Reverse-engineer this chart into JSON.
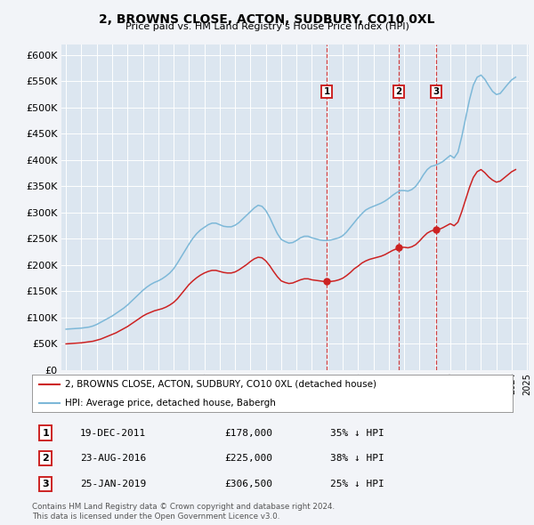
{
  "title": "2, BROWNS CLOSE, ACTON, SUDBURY, CO10 0XL",
  "subtitle": "Price paid vs. HM Land Registry's House Price Index (HPI)",
  "ylim": [
    0,
    620000
  ],
  "yticks": [
    0,
    50000,
    100000,
    150000,
    200000,
    250000,
    300000,
    350000,
    400000,
    450000,
    500000,
    550000,
    600000
  ],
  "hpi_color": "#7db8d8",
  "price_color": "#cc2222",
  "background_color": "#f2f4f8",
  "plot_bg_color": "#dce6f0",
  "grid_color": "#ffffff",
  "transactions": [
    {
      "num": 1,
      "date": "19-DEC-2011",
      "price": 178000,
      "hpi_diff": "35% ↓ HPI",
      "x": 2011.96
    },
    {
      "num": 2,
      "date": "23-AUG-2016",
      "price": 225000,
      "hpi_diff": "38% ↓ HPI",
      "x": 2016.64
    },
    {
      "num": 3,
      "date": "25-JAN-2019",
      "price": 306500,
      "hpi_diff": "25% ↓ HPI",
      "x": 2019.07
    }
  ],
  "hpi_data_x": [
    1995.0,
    1995.25,
    1995.5,
    1995.75,
    1996.0,
    1996.25,
    1996.5,
    1996.75,
    1997.0,
    1997.25,
    1997.5,
    1997.75,
    1998.0,
    1998.25,
    1998.5,
    1998.75,
    1999.0,
    1999.25,
    1999.5,
    1999.75,
    2000.0,
    2000.25,
    2000.5,
    2000.75,
    2001.0,
    2001.25,
    2001.5,
    2001.75,
    2002.0,
    2002.25,
    2002.5,
    2002.75,
    2003.0,
    2003.25,
    2003.5,
    2003.75,
    2004.0,
    2004.25,
    2004.5,
    2004.75,
    2005.0,
    2005.25,
    2005.5,
    2005.75,
    2006.0,
    2006.25,
    2006.5,
    2006.75,
    2007.0,
    2007.25,
    2007.5,
    2007.75,
    2008.0,
    2008.25,
    2008.5,
    2008.75,
    2009.0,
    2009.25,
    2009.5,
    2009.75,
    2010.0,
    2010.25,
    2010.5,
    2010.75,
    2011.0,
    2011.25,
    2011.5,
    2011.75,
    2012.0,
    2012.25,
    2012.5,
    2012.75,
    2013.0,
    2013.25,
    2013.5,
    2013.75,
    2014.0,
    2014.25,
    2014.5,
    2014.75,
    2015.0,
    2015.25,
    2015.5,
    2015.75,
    2016.0,
    2016.25,
    2016.5,
    2016.75,
    2017.0,
    2017.25,
    2017.5,
    2017.75,
    2018.0,
    2018.25,
    2018.5,
    2018.75,
    2019.0,
    2019.25,
    2019.5,
    2019.75,
    2020.0,
    2020.25,
    2020.5,
    2020.75,
    2021.0,
    2021.25,
    2021.5,
    2021.75,
    2022.0,
    2022.25,
    2022.5,
    2022.75,
    2023.0,
    2023.25,
    2023.5,
    2023.75,
    2024.0,
    2024.25
  ],
  "hpi_data_y": [
    78000,
    78500,
    79000,
    79500,
    80000,
    81000,
    82000,
    84000,
    87000,
    91000,
    95000,
    99000,
    103000,
    108000,
    113000,
    118000,
    124000,
    131000,
    138000,
    145000,
    152000,
    158000,
    163000,
    167000,
    170000,
    174000,
    179000,
    185000,
    193000,
    204000,
    216000,
    228000,
    240000,
    251000,
    260000,
    267000,
    272000,
    277000,
    280000,
    280000,
    277000,
    274000,
    273000,
    273000,
    276000,
    281000,
    288000,
    295000,
    302000,
    309000,
    314000,
    312000,
    304000,
    291000,
    275000,
    260000,
    249000,
    245000,
    242000,
    243000,
    247000,
    252000,
    255000,
    255000,
    252000,
    250000,
    248000,
    247000,
    247000,
    248000,
    250000,
    252000,
    256000,
    263000,
    272000,
    281000,
    290000,
    298000,
    305000,
    309000,
    312000,
    315000,
    318000,
    322000,
    327000,
    333000,
    338000,
    342000,
    342000,
    341000,
    344000,
    350000,
    360000,
    372000,
    382000,
    388000,
    390000,
    393000,
    397000,
    403000,
    409000,
    404000,
    415000,
    445000,
    480000,
    515000,
    543000,
    558000,
    562000,
    554000,
    542000,
    531000,
    525000,
    527000,
    536000,
    545000,
    553000,
    558000
  ],
  "price_data_x": [
    1995.0,
    1995.25,
    1995.5,
    1995.75,
    1996.0,
    1996.25,
    1996.5,
    1996.75,
    1997.0,
    1997.25,
    1997.5,
    1997.75,
    1998.0,
    1998.25,
    1998.5,
    1998.75,
    1999.0,
    1999.25,
    1999.5,
    1999.75,
    2000.0,
    2000.25,
    2000.5,
    2000.75,
    2001.0,
    2001.25,
    2001.5,
    2001.75,
    2002.0,
    2002.25,
    2002.5,
    2002.75,
    2003.0,
    2003.25,
    2003.5,
    2003.75,
    2004.0,
    2004.25,
    2004.5,
    2004.75,
    2005.0,
    2005.25,
    2005.5,
    2005.75,
    2006.0,
    2006.25,
    2006.5,
    2006.75,
    2007.0,
    2007.25,
    2007.5,
    2007.75,
    2008.0,
    2008.25,
    2008.5,
    2008.75,
    2009.0,
    2009.25,
    2009.5,
    2009.75,
    2010.0,
    2010.25,
    2010.5,
    2010.75,
    2011.0,
    2011.25,
    2011.5,
    2011.75,
    2012.0,
    2012.25,
    2012.5,
    2012.75,
    2013.0,
    2013.25,
    2013.5,
    2013.75,
    2014.0,
    2014.25,
    2014.5,
    2014.75,
    2015.0,
    2015.25,
    2015.5,
    2015.75,
    2016.0,
    2016.25,
    2016.5,
    2016.75,
    2017.0,
    2017.25,
    2017.5,
    2017.75,
    2018.0,
    2018.25,
    2018.5,
    2018.75,
    2019.0,
    2019.25,
    2019.5,
    2019.75,
    2020.0,
    2020.25,
    2020.5,
    2020.75,
    2021.0,
    2021.25,
    2021.5,
    2021.75,
    2022.0,
    2022.25,
    2022.5,
    2022.75,
    2023.0,
    2023.25,
    2023.5,
    2023.75,
    2024.0,
    2024.25
  ],
  "price_data_y": [
    50000,
    50500,
    51000,
    51500,
    52000,
    53000,
    54000,
    55000,
    57000,
    59000,
    62000,
    65000,
    68000,
    71000,
    75000,
    79000,
    83000,
    88000,
    93000,
    98000,
    103000,
    107000,
    110000,
    113000,
    115000,
    117000,
    120000,
    124000,
    129000,
    136000,
    145000,
    154000,
    163000,
    170000,
    176000,
    181000,
    185000,
    188000,
    190000,
    190000,
    188000,
    186000,
    185000,
    185000,
    187000,
    191000,
    196000,
    201000,
    207000,
    212000,
    215000,
    214000,
    208000,
    199000,
    188000,
    178000,
    170000,
    167000,
    165000,
    166000,
    169000,
    172000,
    174000,
    174000,
    172000,
    171000,
    170000,
    169000,
    169000,
    169000,
    170000,
    172000,
    175000,
    180000,
    186000,
    193000,
    198000,
    204000,
    208000,
    211000,
    213000,
    215000,
    217000,
    220000,
    224000,
    228000,
    231000,
    234000,
    234000,
    233000,
    235000,
    239000,
    246000,
    254000,
    261000,
    265000,
    267000,
    268000,
    271000,
    275000,
    279000,
    275000,
    282000,
    302000,
    325000,
    348000,
    367000,
    378000,
    382000,
    376000,
    368000,
    362000,
    358000,
    360000,
    366000,
    372000,
    378000,
    382000
  ],
  "legend_entries": [
    "2, BROWNS CLOSE, ACTON, SUDBURY, CO10 0XL (detached house)",
    "HPI: Average price, detached house, Babergh"
  ],
  "footnote": "Contains HM Land Registry data © Crown copyright and database right 2024.\nThis data is licensed under the Open Government Licence v3.0.",
  "dashed_line_color": "#cc2222",
  "label_box_color": "#cc2222"
}
